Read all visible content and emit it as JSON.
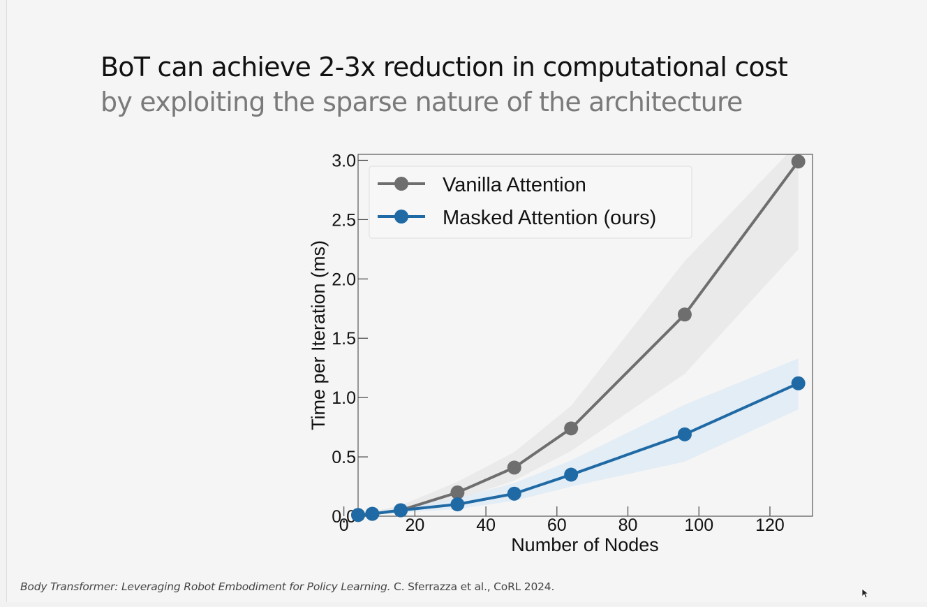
{
  "slide": {
    "title": "BoT can achieve 2-3x reduction in computational cost",
    "subtitle": "by exploiting the sparse nature of the architecture",
    "citation_italic": "Body Transformer: Leveraging Robot Embodiment for Policy Learning.",
    "citation_rest": " C. Sferrazza et al., CoRL 2024."
  },
  "colors": {
    "vanilla": "#6e6e6e",
    "masked": "#1f6aa5",
    "vanilla_band": "#e6e6e6",
    "masked_band": "#dce9f5"
  },
  "chart_data": {
    "type": "line",
    "title": "",
    "xlabel": "Number of Nodes",
    "ylabel": "Time per Iteration (ms)",
    "xlim": [
      4,
      132
    ],
    "ylim": [
      0.0,
      3.05
    ],
    "xticks": [
      0,
      20,
      40,
      60,
      80,
      100,
      120
    ],
    "yticks": [
      0.0,
      0.5,
      1.0,
      1.5,
      2.0,
      2.5,
      3.0
    ],
    "xtick_labels": [
      "0",
      "20",
      "40",
      "60",
      "80",
      "100",
      "120"
    ],
    "ytick_labels": [
      "0.0",
      "0.5",
      "1.0",
      "1.5",
      "2.0",
      "2.5",
      "3.0"
    ],
    "legend_position": "top-left",
    "grid": false,
    "x": [
      4,
      8,
      16,
      32,
      48,
      64,
      96,
      128
    ],
    "series": [
      {
        "name": "Vanilla Attention",
        "values": [
          0.01,
          0.02,
          0.05,
          0.2,
          0.41,
          0.74,
          1.7,
          2.99
        ],
        "lower": [
          0.0,
          0.01,
          0.03,
          0.14,
          0.3,
          0.55,
          1.2,
          2.25
        ],
        "upper": [
          0.02,
          0.04,
          0.09,
          0.29,
          0.54,
          0.93,
          2.15,
          3.15
        ]
      },
      {
        "name": "Masked Attention (ours)",
        "values": [
          0.01,
          0.02,
          0.05,
          0.1,
          0.19,
          0.35,
          0.69,
          1.12
        ],
        "lower": [
          0.0,
          0.01,
          0.03,
          0.06,
          0.13,
          0.25,
          0.46,
          0.9
        ],
        "upper": [
          0.02,
          0.03,
          0.08,
          0.15,
          0.28,
          0.47,
          0.94,
          1.33
        ]
      }
    ]
  }
}
